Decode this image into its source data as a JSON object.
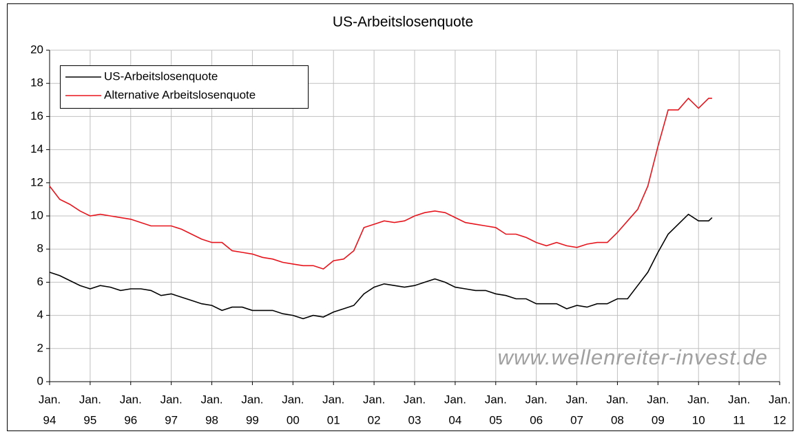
{
  "chart_data": {
    "type": "line",
    "title": "US-Arbeitslosenquote",
    "annotation": "www.wellenreiter-invest.de",
    "x": [
      "1994-01",
      "1994-04",
      "1994-07",
      "1994-10",
      "1995-01",
      "1995-04",
      "1995-07",
      "1995-10",
      "1996-01",
      "1996-04",
      "1996-07",
      "1996-10",
      "1997-01",
      "1997-04",
      "1997-07",
      "1997-10",
      "1998-01",
      "1998-04",
      "1998-07",
      "1998-10",
      "1999-01",
      "1999-04",
      "1999-07",
      "1999-10",
      "2000-01",
      "2000-04",
      "2000-07",
      "2000-10",
      "2001-01",
      "2001-04",
      "2001-07",
      "2001-10",
      "2002-01",
      "2002-04",
      "2002-07",
      "2002-10",
      "2003-01",
      "2003-04",
      "2003-07",
      "2003-10",
      "2004-01",
      "2004-04",
      "2004-07",
      "2004-10",
      "2005-01",
      "2005-04",
      "2005-07",
      "2005-10",
      "2006-01",
      "2006-04",
      "2006-07",
      "2006-10",
      "2007-01",
      "2007-04",
      "2007-07",
      "2007-10",
      "2008-01",
      "2008-04",
      "2008-07",
      "2008-10",
      "2009-01",
      "2009-04",
      "2009-07",
      "2009-10",
      "2010-01",
      "2010-04",
      "2010-05"
    ],
    "series": [
      {
        "name": "US-Arbeitslosenquote",
        "color": "#000000",
        "values": [
          6.6,
          6.4,
          6.1,
          5.8,
          5.6,
          5.8,
          5.7,
          5.5,
          5.6,
          5.6,
          5.5,
          5.2,
          5.3,
          5.1,
          4.9,
          4.7,
          4.6,
          4.3,
          4.5,
          4.5,
          4.3,
          4.3,
          4.3,
          4.1,
          4.0,
          3.8,
          4.0,
          3.9,
          4.2,
          4.4,
          4.6,
          5.3,
          5.7,
          5.9,
          5.8,
          5.7,
          5.8,
          6.0,
          6.2,
          6.0,
          5.7,
          5.6,
          5.5,
          5.5,
          5.3,
          5.2,
          5.0,
          5.0,
          4.7,
          4.7,
          4.7,
          4.4,
          4.6,
          4.5,
          4.7,
          4.7,
          5.0,
          5.0,
          5.8,
          6.6,
          7.8,
          8.9,
          9.5,
          10.1,
          9.7,
          9.7,
          9.9
        ]
      },
      {
        "name": "Alternative Arbeitslosenquote",
        "color": "#e8141c",
        "values": [
          11.8,
          11.0,
          10.7,
          10.3,
          10.0,
          10.1,
          10.0,
          9.9,
          9.8,
          9.6,
          9.4,
          9.4,
          9.4,
          9.2,
          8.9,
          8.6,
          8.4,
          8.4,
          7.9,
          7.8,
          7.7,
          7.5,
          7.4,
          7.2,
          7.1,
          7.0,
          7.0,
          6.8,
          7.3,
          7.4,
          7.9,
          9.3,
          9.5,
          9.7,
          9.6,
          9.7,
          10.0,
          10.2,
          10.3,
          10.2,
          9.9,
          9.6,
          9.5,
          9.4,
          9.3,
          8.9,
          8.9,
          8.7,
          8.4,
          8.2,
          8.4,
          8.2,
          8.1,
          8.3,
          8.4,
          8.4,
          9.0,
          9.7,
          10.4,
          11.8,
          14.2,
          16.4,
          16.4,
          17.1,
          16.5,
          17.1,
          17.1
        ]
      }
    ],
    "xlim": [
      "1994-01",
      "2012-01"
    ],
    "xticks": [
      {
        "value": "1994-01",
        "label": [
          "Jan.",
          "94"
        ]
      },
      {
        "value": "1995-01",
        "label": [
          "Jan.",
          "95"
        ]
      },
      {
        "value": "1996-01",
        "label": [
          "Jan.",
          "96"
        ]
      },
      {
        "value": "1997-01",
        "label": [
          "Jan.",
          "97"
        ]
      },
      {
        "value": "1998-01",
        "label": [
          "Jan.",
          "98"
        ]
      },
      {
        "value": "1999-01",
        "label": [
          "Jan.",
          "99"
        ]
      },
      {
        "value": "2000-01",
        "label": [
          "Jan.",
          "00"
        ]
      },
      {
        "value": "2001-01",
        "label": [
          "Jan.",
          "01"
        ]
      },
      {
        "value": "2002-01",
        "label": [
          "Jan.",
          "02"
        ]
      },
      {
        "value": "2003-01",
        "label": [
          "Jan.",
          "03"
        ]
      },
      {
        "value": "2004-01",
        "label": [
          "Jan.",
          "04"
        ]
      },
      {
        "value": "2005-01",
        "label": [
          "Jan.",
          "05"
        ]
      },
      {
        "value": "2006-01",
        "label": [
          "Jan.",
          "06"
        ]
      },
      {
        "value": "2007-01",
        "label": [
          "Jan.",
          "07"
        ]
      },
      {
        "value": "2008-01",
        "label": [
          "Jan.",
          "08"
        ]
      },
      {
        "value": "2009-01",
        "label": [
          "Jan.",
          "09"
        ]
      },
      {
        "value": "2010-01",
        "label": [
          "Jan.",
          "10"
        ]
      },
      {
        "value": "2011-01",
        "label": [
          "Jan.",
          "11"
        ]
      },
      {
        "value": "2012-01",
        "label": [
          "Jan.",
          "12"
        ]
      }
    ],
    "ylim": [
      0,
      20
    ],
    "yticks": [
      0,
      2,
      4,
      6,
      8,
      10,
      12,
      14,
      16,
      18,
      20
    ],
    "grid": true,
    "legend": "upper left"
  }
}
